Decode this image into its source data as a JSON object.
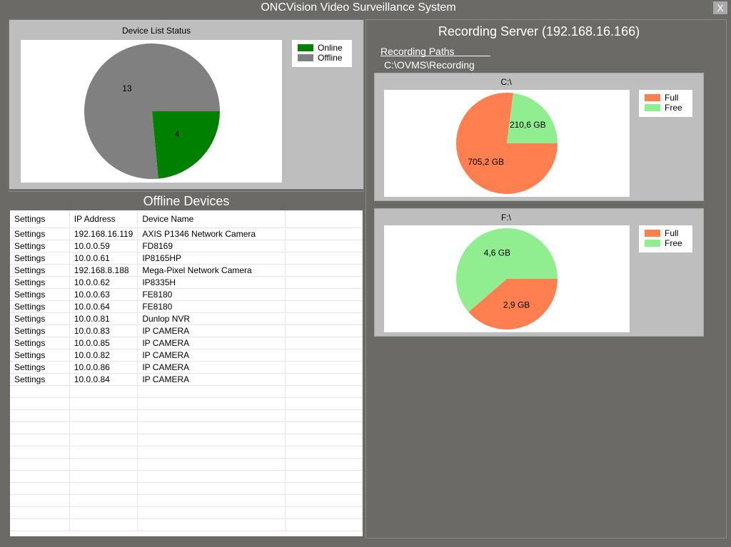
{
  "window": {
    "title": "ONCVision Video Surveillance System",
    "close_label": "X"
  },
  "device_status": {
    "title": "Device List Status",
    "legend": [
      {
        "label": "Online",
        "color": "#008000"
      },
      {
        "label": "Offline",
        "color": "#808080"
      }
    ],
    "chart_data": {
      "type": "pie",
      "title": "Device List Status",
      "categories": [
        "Online",
        "Offline"
      ],
      "values": [
        4,
        13
      ],
      "labels": [
        "4",
        "13"
      ],
      "colors": [
        "#008000",
        "#808080"
      ]
    }
  },
  "offline_devices": {
    "title": "Offline Devices",
    "columns": [
      "Settings",
      "IP Address",
      "Device Name"
    ],
    "rows": [
      {
        "settings": "Settings",
        "ip": "192.168.16.119",
        "name": "AXIS P1346 Network Camera"
      },
      {
        "settings": "Settings",
        "ip": "10.0.0.59",
        "name": "FD8169"
      },
      {
        "settings": "Settings",
        "ip": "10.0.0.61",
        "name": "IP8165HP"
      },
      {
        "settings": "Settings",
        "ip": "192.168.8.188",
        "name": "Mega-Pixel Network Camera"
      },
      {
        "settings": "Settings",
        "ip": "10.0.0.62",
        "name": "IP8335H"
      },
      {
        "settings": "Settings",
        "ip": "10.0.0.63",
        "name": "FE8180"
      },
      {
        "settings": "Settings",
        "ip": "10.0.0.64",
        "name": "FE8180"
      },
      {
        "settings": "Settings",
        "ip": "10.0.0.81",
        "name": "Dunlop NVR"
      },
      {
        "settings": "Settings",
        "ip": "10.0.0.83",
        "name": "IP CAMERA"
      },
      {
        "settings": "Settings",
        "ip": "10.0.0.85",
        "name": "IP CAMERA"
      },
      {
        "settings": "Settings",
        "ip": "10.0.0.82",
        "name": "IP CAMERA"
      },
      {
        "settings": "Settings",
        "ip": "10.0.0.86",
        "name": "IP CAMERA"
      },
      {
        "settings": "Settings",
        "ip": "10.0.0.84",
        "name": "IP CAMERA"
      }
    ]
  },
  "recording_server": {
    "title": "Recording Server (192.168.16.166)",
    "paths_label": "Recording Paths",
    "path": "C:\\OVMS\\Recording",
    "drives": [
      {
        "title": "C:\\",
        "legend": [
          {
            "label": "Full",
            "color": "#ff7f50"
          },
          {
            "label": "Free",
            "color": "#90ee90"
          }
        ],
        "chart_data": {
          "type": "pie",
          "title": "C:\\",
          "categories": [
            "Full",
            "Free"
          ],
          "values": [
            705.2,
            210.6
          ],
          "labels": [
            "705,2 GB",
            "210,6 GB"
          ],
          "colors": [
            "#ff7f50",
            "#90ee90"
          ]
        }
      },
      {
        "title": "F:\\",
        "legend": [
          {
            "label": "Full",
            "color": "#ff7f50"
          },
          {
            "label": "Free",
            "color": "#90ee90"
          }
        ],
        "chart_data": {
          "type": "pie",
          "title": "F:\\",
          "categories": [
            "Full",
            "Free"
          ],
          "values": [
            2.9,
            4.6
          ],
          "labels": [
            "2,9 GB",
            "4,6 GB"
          ],
          "colors": [
            "#ff7f50",
            "#90ee90"
          ]
        }
      }
    ]
  }
}
